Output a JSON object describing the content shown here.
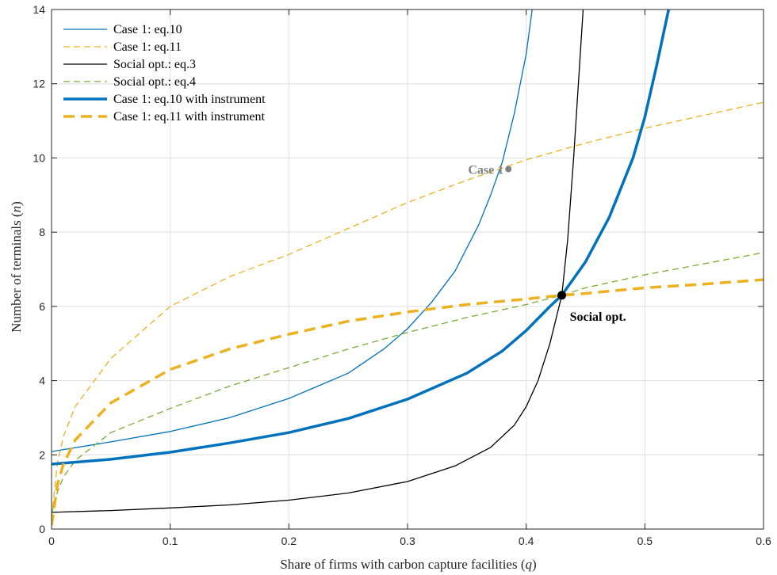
{
  "chart_data": {
    "type": "line",
    "xlabel": "Share of firms with carbon capture facilities (",
    "xlabel_var": "q",
    "xlabel_close": ")",
    "ylabel": "Number of terminals (",
    "ylabel_var": "n",
    "ylabel_close": ")",
    "xlim": [
      0,
      0.6
    ],
    "ylim": [
      0,
      14
    ],
    "x_ticks": [
      0,
      0.1,
      0.2,
      0.3,
      0.4,
      0.5,
      0.6
    ],
    "x_tick_labels": [
      "0",
      "0.1",
      "0.2",
      "0.3",
      "0.4",
      "0.5",
      "0.6"
    ],
    "y_ticks": [
      0,
      2,
      4,
      6,
      8,
      10,
      12,
      14
    ],
    "y_tick_labels": [
      "0",
      "2",
      "4",
      "6",
      "8",
      "10",
      "12",
      "14"
    ],
    "grid": true,
    "legend_position": "top-left",
    "series": [
      {
        "name": "Case 1: eq.10",
        "color": "#0072BD",
        "style": "solid",
        "width": "thin",
        "points": [
          [
            0,
            2.09
          ],
          [
            0.05,
            2.35
          ],
          [
            0.1,
            2.63
          ],
          [
            0.15,
            3.0
          ],
          [
            0.2,
            3.52
          ],
          [
            0.25,
            4.2
          ],
          [
            0.28,
            4.85
          ],
          [
            0.3,
            5.4
          ],
          [
            0.32,
            6.1
          ],
          [
            0.34,
            6.95
          ],
          [
            0.36,
            8.2
          ],
          [
            0.37,
            9.0
          ],
          [
            0.38,
            9.9
          ],
          [
            0.39,
            11.2
          ],
          [
            0.4,
            12.8
          ],
          [
            0.405,
            14.0
          ]
        ]
      },
      {
        "name": "Case 1: eq.11",
        "color": "#EDB120",
        "style": "dashed",
        "width": "thin",
        "points": [
          [
            0,
            0.3
          ],
          [
            0.005,
            1.8
          ],
          [
            0.01,
            2.5
          ],
          [
            0.02,
            3.3
          ],
          [
            0.05,
            4.6
          ],
          [
            0.1,
            6.0
          ],
          [
            0.15,
            6.8
          ],
          [
            0.2,
            7.4
          ],
          [
            0.25,
            8.1
          ],
          [
            0.3,
            8.8
          ],
          [
            0.35,
            9.4
          ],
          [
            0.4,
            9.95
          ],
          [
            0.45,
            10.4
          ],
          [
            0.5,
            10.8
          ],
          [
            0.55,
            11.15
          ],
          [
            0.6,
            11.5
          ]
        ]
      },
      {
        "name": "Social opt.: eq.3",
        "color": "#000000",
        "style": "solid",
        "width": "thin",
        "points": [
          [
            0,
            0.45
          ],
          [
            0.05,
            0.5
          ],
          [
            0.1,
            0.57
          ],
          [
            0.15,
            0.65
          ],
          [
            0.2,
            0.78
          ],
          [
            0.25,
            0.97
          ],
          [
            0.3,
            1.28
          ],
          [
            0.34,
            1.7
          ],
          [
            0.37,
            2.2
          ],
          [
            0.39,
            2.8
          ],
          [
            0.4,
            3.3
          ],
          [
            0.41,
            4.0
          ],
          [
            0.42,
            5.0
          ],
          [
            0.43,
            6.3
          ],
          [
            0.435,
            7.8
          ],
          [
            0.44,
            10.0
          ],
          [
            0.445,
            12.5
          ],
          [
            0.448,
            14.0
          ]
        ]
      },
      {
        "name": "Social opt.: eq.4",
        "color": "#77AC30",
        "style": "dashed",
        "width": "thin",
        "points": [
          [
            0,
            0.4
          ],
          [
            0.005,
            1.0
          ],
          [
            0.01,
            1.4
          ],
          [
            0.02,
            1.85
          ],
          [
            0.05,
            2.6
          ],
          [
            0.1,
            3.25
          ],
          [
            0.15,
            3.85
          ],
          [
            0.2,
            4.35
          ],
          [
            0.25,
            4.85
          ],
          [
            0.3,
            5.3
          ],
          [
            0.35,
            5.7
          ],
          [
            0.4,
            6.05
          ],
          [
            0.43,
            6.3
          ],
          [
            0.45,
            6.5
          ],
          [
            0.5,
            6.85
          ],
          [
            0.55,
            7.15
          ],
          [
            0.6,
            7.45
          ]
        ]
      },
      {
        "name": "Case 1: eq.10 with instrument",
        "color": "#0072BD",
        "style": "solid",
        "width": "thick",
        "points": [
          [
            0,
            1.75
          ],
          [
            0.05,
            1.88
          ],
          [
            0.1,
            2.07
          ],
          [
            0.15,
            2.32
          ],
          [
            0.2,
            2.6
          ],
          [
            0.25,
            2.98
          ],
          [
            0.3,
            3.5
          ],
          [
            0.35,
            4.2
          ],
          [
            0.38,
            4.8
          ],
          [
            0.4,
            5.35
          ],
          [
            0.42,
            6.0
          ],
          [
            0.43,
            6.3
          ],
          [
            0.45,
            7.2
          ],
          [
            0.47,
            8.4
          ],
          [
            0.49,
            10.0
          ],
          [
            0.5,
            11.1
          ],
          [
            0.51,
            12.5
          ],
          [
            0.52,
            14.0
          ]
        ]
      },
      {
        "name": "Case 1: eq.11 with instrument",
        "color": "#EDB120",
        "style": "dashed",
        "width": "thick",
        "points": [
          [
            0,
            0.1
          ],
          [
            0.005,
            1.2
          ],
          [
            0.01,
            1.75
          ],
          [
            0.02,
            2.4
          ],
          [
            0.05,
            3.4
          ],
          [
            0.1,
            4.3
          ],
          [
            0.15,
            4.85
          ],
          [
            0.2,
            5.25
          ],
          [
            0.25,
            5.6
          ],
          [
            0.3,
            5.85
          ],
          [
            0.35,
            6.05
          ],
          [
            0.4,
            6.2
          ],
          [
            0.43,
            6.3
          ],
          [
            0.45,
            6.35
          ],
          [
            0.5,
            6.5
          ],
          [
            0.55,
            6.6
          ],
          [
            0.6,
            6.72
          ]
        ]
      }
    ],
    "points": [
      {
        "name": "Case 1",
        "x": 0.385,
        "y": 9.7,
        "color": "#808080"
      },
      {
        "name": "Social opt.",
        "x": 0.43,
        "y": 6.3,
        "color": "#000000"
      }
    ],
    "annotations": [
      {
        "text": "Case 1",
        "x": 0.385,
        "y": 9.7
      },
      {
        "text": "Social opt.",
        "x": 0.43,
        "y": 6.3
      }
    ]
  }
}
